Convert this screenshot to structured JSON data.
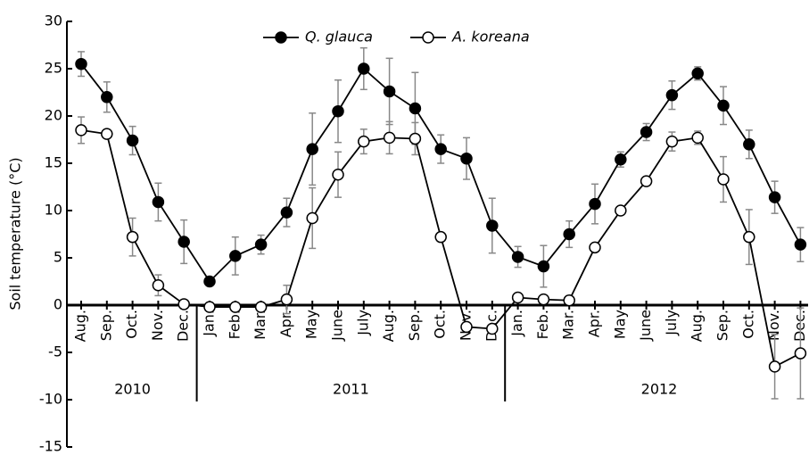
{
  "chart_data": {
    "type": "line",
    "y_label": "Soil temperature (°C)",
    "categories": [
      "Aug.",
      "Sep.",
      "Oct.",
      "Nov.",
      "Dec.",
      "Jan.",
      "Feb.",
      "Mar.",
      "Apr.",
      "May",
      "June",
      "July",
      "Aug.",
      "Sep.",
      "Oct.",
      "Nov.",
      "Dec.",
      "Jan.",
      "Feb.",
      "Mar.",
      "Apr.",
      "May",
      "June",
      "July",
      "Aug.",
      "Sep.",
      "Oct.",
      "Nov.",
      "Dec."
    ],
    "year_groups": [
      {
        "label": "2010",
        "count": 5
      },
      {
        "label": "2011",
        "count": 12
      },
      {
        "label": "2012",
        "count": 12
      }
    ],
    "series": [
      {
        "name": "Q. glauca",
        "color": "#000000",
        "marker_fill": "#000000",
        "values": [
          25.5,
          22,
          17.4,
          10.9,
          6.7,
          2.5,
          5.2,
          6.4,
          9.8,
          16.5,
          20.5,
          25,
          22.6,
          20.8,
          16.5,
          15.5,
          8.4,
          5.1,
          4.1,
          7.5,
          10.7,
          15.4,
          18.3,
          22.2,
          24.5,
          21.1,
          17,
          11.4,
          6.4
        ],
        "errors": [
          1.3,
          1.6,
          1.5,
          2,
          2.3,
          0,
          2,
          1,
          1.5,
          3.8,
          3.3,
          2.2,
          3.5,
          3.8,
          1.5,
          2.2,
          2.9,
          1.1,
          2.2,
          1.4,
          2.1,
          0.8,
          0.9,
          1.5,
          0.7,
          2,
          1.5,
          1.7,
          1.8
        ]
      },
      {
        "name": "A. koreana",
        "color": "#000000",
        "marker_fill": "#ffffff",
        "values": [
          18.5,
          18.1,
          7.2,
          2.1,
          0.1,
          -0.2,
          -0.2,
          -0.2,
          0.6,
          9.2,
          13.8,
          17.3,
          17.7,
          17.6,
          7.2,
          -2.3,
          -2.5,
          0.8,
          0.6,
          0.5,
          6.1,
          10,
          13.1,
          17.3,
          17.7,
          13.3,
          7.2,
          -6.5,
          -5.1
        ],
        "errors": [
          1.4,
          0,
          2,
          1.1,
          0,
          0,
          0,
          0,
          1.5,
          3.2,
          2.4,
          1.3,
          1.7,
          1.7,
          0,
          0,
          0,
          0,
          0,
          0,
          0,
          0,
          0,
          1,
          0.7,
          2.4,
          2.9,
          3.4,
          4.8
        ]
      }
    ],
    "error_color": "#888888",
    "ylim": [
      -15,
      30
    ],
    "yticks": [
      -15,
      -10,
      -5,
      0,
      5,
      10,
      15,
      20,
      25,
      30
    ]
  }
}
